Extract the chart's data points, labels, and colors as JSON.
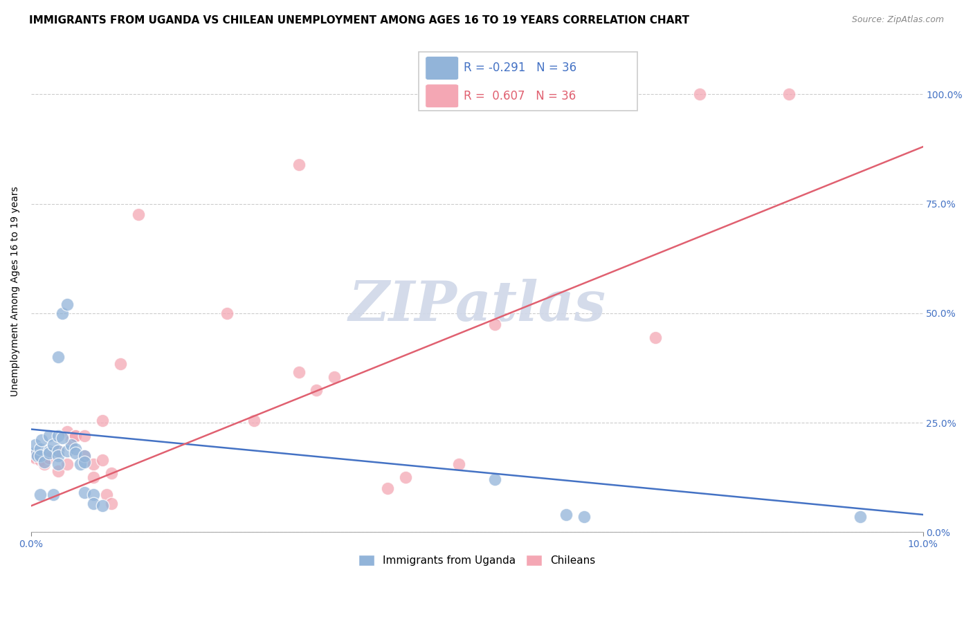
{
  "title": "IMMIGRANTS FROM UGANDA VS CHILEAN UNEMPLOYMENT AMONG AGES 16 TO 19 YEARS CORRELATION CHART",
  "source": "Source: ZipAtlas.com",
  "ylabel": "Unemployment Among Ages 16 to 19 years",
  "xlim": [
    0.0,
    0.1
  ],
  "ylim": [
    0.0,
    1.1
  ],
  "xtick_labels": [
    "0.0%",
    "10.0%"
  ],
  "ytick_labels": [
    "0.0%",
    "25.0%",
    "50.0%",
    "75.0%",
    "100.0%"
  ],
  "ytick_values": [
    0.0,
    0.25,
    0.5,
    0.75,
    1.0
  ],
  "grid_color": "#cccccc",
  "background_color": "#ffffff",
  "watermark": "ZIPatlas",
  "watermark_color": "#d0d8e8",
  "legend_r_blue": "-0.291",
  "legend_n_blue": "36",
  "legend_r_pink": "0.607",
  "legend_n_pink": "36",
  "blue_color": "#92b4d9",
  "pink_color": "#f4a7b4",
  "blue_line_color": "#4472c4",
  "pink_line_color": "#e06070",
  "blue_points_x": [
    0.0003,
    0.0005,
    0.0007,
    0.001,
    0.001,
    0.0012,
    0.0015,
    0.002,
    0.002,
    0.002,
    0.0025,
    0.003,
    0.003,
    0.003,
    0.0035,
    0.004,
    0.004,
    0.0045,
    0.005,
    0.005,
    0.0055,
    0.006,
    0.006,
    0.006,
    0.007,
    0.007,
    0.008,
    0.0035,
    0.0025,
    0.001,
    0.003,
    0.052,
    0.06,
    0.062,
    0.093,
    0.003
  ],
  "blue_points_y": [
    0.18,
    0.2,
    0.175,
    0.19,
    0.175,
    0.21,
    0.16,
    0.185,
    0.18,
    0.22,
    0.2,
    0.185,
    0.175,
    0.22,
    0.5,
    0.52,
    0.185,
    0.2,
    0.19,
    0.18,
    0.155,
    0.175,
    0.16,
    0.09,
    0.085,
    0.065,
    0.06,
    0.215,
    0.085,
    0.085,
    0.155,
    0.12,
    0.04,
    0.035,
    0.035,
    0.4
  ],
  "pink_points_x": [
    0.0003,
    0.0005,
    0.001,
    0.0015,
    0.002,
    0.003,
    0.003,
    0.004,
    0.004,
    0.0045,
    0.005,
    0.005,
    0.006,
    0.006,
    0.007,
    0.007,
    0.008,
    0.008,
    0.0085,
    0.009,
    0.009,
    0.01,
    0.012,
    0.022,
    0.025,
    0.03,
    0.032,
    0.034,
    0.04,
    0.042,
    0.048,
    0.052,
    0.07,
    0.075,
    0.085,
    0.03
  ],
  "pink_points_y": [
    0.175,
    0.17,
    0.165,
    0.155,
    0.17,
    0.14,
    0.185,
    0.155,
    0.23,
    0.21,
    0.22,
    0.22,
    0.22,
    0.175,
    0.155,
    0.125,
    0.165,
    0.255,
    0.085,
    0.135,
    0.065,
    0.385,
    0.725,
    0.5,
    0.255,
    0.365,
    0.325,
    0.355,
    0.1,
    0.125,
    0.155,
    0.475,
    0.445,
    1.0,
    1.0,
    0.84
  ],
  "blue_line_x": [
    0.0,
    0.1
  ],
  "blue_line_y": [
    0.235,
    0.04
  ],
  "pink_line_x": [
    0.0,
    0.1
  ],
  "pink_line_y": [
    0.06,
    0.88
  ],
  "title_fontsize": 11,
  "axis_label_fontsize": 10,
  "tick_fontsize": 10,
  "legend_fontsize": 12
}
